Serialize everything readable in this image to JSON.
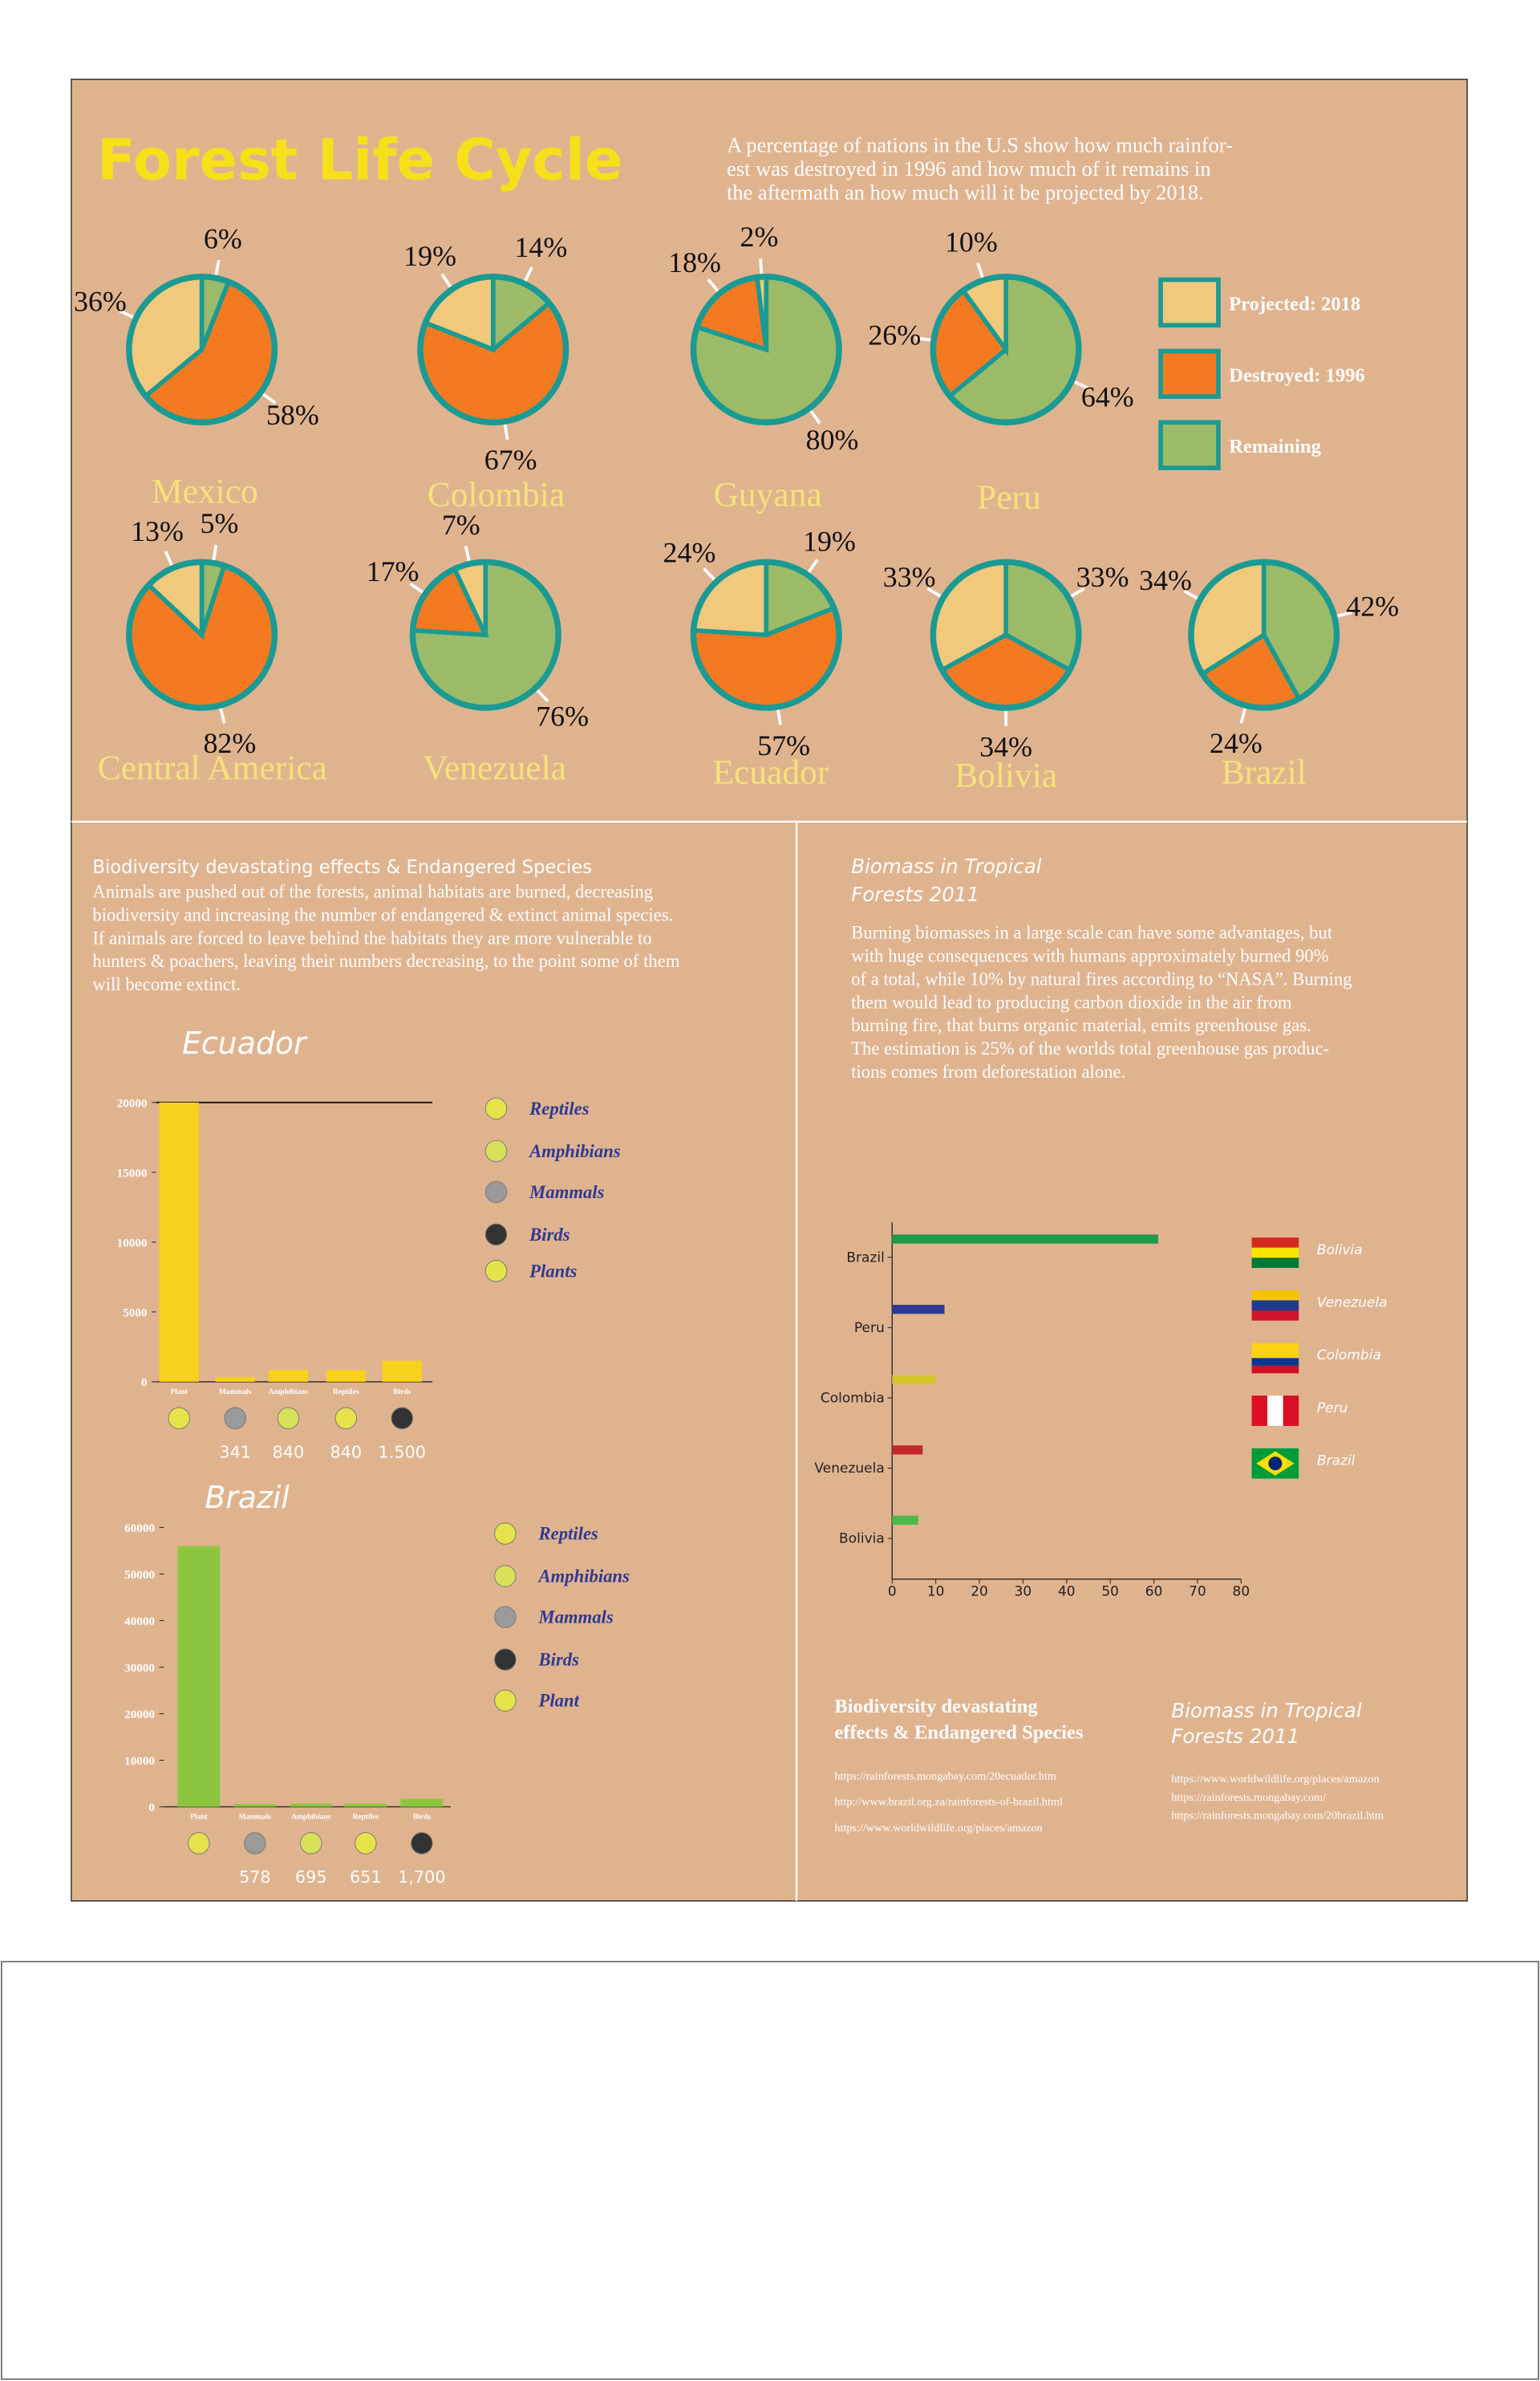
{
  "header": {
    "title": "Forest Life Cycle",
    "intro": [
      "A percentage of nations in the U.S show how much rainfor-",
      "est was destroyed in 1996 and how much of it remains in",
      "the aftermath an how much will it be projected by 2018."
    ]
  },
  "pie_legend": {
    "items": [
      "Projected: 2018",
      "Destroyed: 1996",
      "Remaining"
    ],
    "colors": [
      "#f0c97c",
      "#f37a21",
      "#9cbb68"
    ]
  },
  "chart_data": [
    {
      "type": "pie",
      "title": "Mexico",
      "values": [
        36,
        58,
        6
      ],
      "value_labels": [
        "36%",
        "58%",
        "6%"
      ]
    },
    {
      "type": "pie",
      "title": "Colombia",
      "values": [
        19,
        67,
        14
      ],
      "value_labels": [
        "19%",
        "67%",
        "14%"
      ]
    },
    {
      "type": "pie",
      "title": "Guyana",
      "values": [
        2,
        18,
        80
      ],
      "value_labels": [
        "2%",
        "18%",
        "80%"
      ]
    },
    {
      "type": "pie",
      "title": "Peru",
      "values": [
        10,
        26,
        64
      ],
      "value_labels": [
        "10%",
        "26%",
        "64%"
      ]
    },
    {
      "type": "pie",
      "title": "Central America",
      "values": [
        13,
        82,
        5
      ],
      "value_labels": [
        "13%",
        "82%",
        "5%"
      ]
    },
    {
      "type": "pie",
      "title": "Venezuela",
      "values": [
        7,
        17,
        76
      ],
      "value_labels": [
        "7%",
        "17%",
        "76%"
      ]
    },
    {
      "type": "pie",
      "title": "Ecuador",
      "values": [
        24,
        57,
        19
      ],
      "value_labels": [
        "24%",
        "57%",
        "19%"
      ]
    },
    {
      "type": "pie",
      "title": "Bolivia",
      "values": [
        33,
        34,
        33
      ],
      "value_labels": [
        "33%",
        "34%",
        "33%"
      ]
    },
    {
      "type": "pie",
      "title": "Brazil",
      "values": [
        34,
        24,
        42
      ],
      "value_labels": [
        "34%",
        "24%",
        "42%"
      ]
    },
    {
      "type": "bar",
      "title": "Ecuador",
      "categories": [
        "Plant",
        "Mammals",
        "Amphibians",
        "Reptiles",
        "Birds"
      ],
      "values": [
        20000,
        341,
        840,
        840,
        1500
      ],
      "value_labels": [
        null,
        "341",
        "840",
        "840",
        "1.500"
      ],
      "color": "#f8d11a",
      "ylim": [
        0,
        20000
      ],
      "yticks": [
        0,
        5000,
        10000,
        15000,
        20000
      ],
      "legend": [
        "Reptiles",
        "Amphibians",
        "Mammals",
        "Birds",
        "Plants"
      ]
    },
    {
      "type": "bar",
      "title": "Brazil",
      "categories": [
        "Plant",
        "Mammals",
        "Amphibians",
        "Reptiles",
        "Birds"
      ],
      "values": [
        56000,
        578,
        695,
        651,
        1700
      ],
      "value_labels": [
        null,
        "578",
        "695",
        "651",
        "1,700"
      ],
      "color": "#8cc63f",
      "ylim": [
        0,
        60000
      ],
      "yticks": [
        0,
        10000,
        20000,
        30000,
        40000,
        50000,
        60000
      ],
      "legend": [
        "Reptiles",
        "Amphibians",
        "Mammals",
        "Birds",
        "Plant"
      ]
    },
    {
      "type": "barh",
      "categories": [
        "Brazil",
        "Peru",
        "Colombia",
        "Venezuela",
        "Bolivia"
      ],
      "values": [
        61,
        12,
        10,
        7,
        6
      ],
      "colors": [
        "#1e9a4a",
        "#2e3a92",
        "#d8c52c",
        "#c1272d",
        "#4cb84c"
      ],
      "xlim": [
        0,
        80
      ],
      "xticks": [
        0,
        10,
        20,
        30,
        40,
        50,
        60,
        70,
        80
      ],
      "legend": [
        "Bolivia",
        "Venezuela",
        "Colombia",
        "Peru",
        "Brazil"
      ]
    }
  ],
  "biodiversity": {
    "heading": "Biodiversity devastating effects & Endangered Species",
    "text": [
      "Animals are pushed out of the forests, animal habitats are burned, decreasing",
      "biodiversity and increasing the number of endangered & extinct animal species.",
      "If animals are forced to leave behind the habitats they are more vulnerable to",
      "hunters & poachers, leaving their numbers decreasing, to the point some of them",
      "will become extinct."
    ]
  },
  "biomass": {
    "heading": [
      "Biomass in Tropical",
      "Forests 2011"
    ],
    "text": [
      "Burning biomasses in a large scale can have some advantages, but",
      "with huge consequences with humans approximately burned 90%",
      "of a total, while 10% by natural fires according to “NASA”. Burning",
      "them would lead to producing carbon dioxide in the air from",
      "burning fire, that burns organic material, emits greenhouse gas.",
      "The estimation is 25% of the worlds total greenhouse gas produc-",
      "tions comes from deforestation alone."
    ]
  },
  "sources": [
    {
      "heading": [
        "Biodiversity devastating",
        "effects & Endangered Species"
      ],
      "links": [
        "https://rainforests.mongabay.com/20ecuador.htm",
        "http://www.brazil.org.za/rainforests-of-brazil.html",
        "https://www.worldwildlife.org/places/amazon"
      ]
    },
    {
      "heading": [
        "Biomass in Tropical",
        "Forests 2011"
      ],
      "links": [
        "https://www.worldwildlife.org/places/amazon",
        "https://rainforests.mongabay.com/",
        "https://rainforests.mongabay.com/20brazil.htm"
      ]
    }
  ]
}
